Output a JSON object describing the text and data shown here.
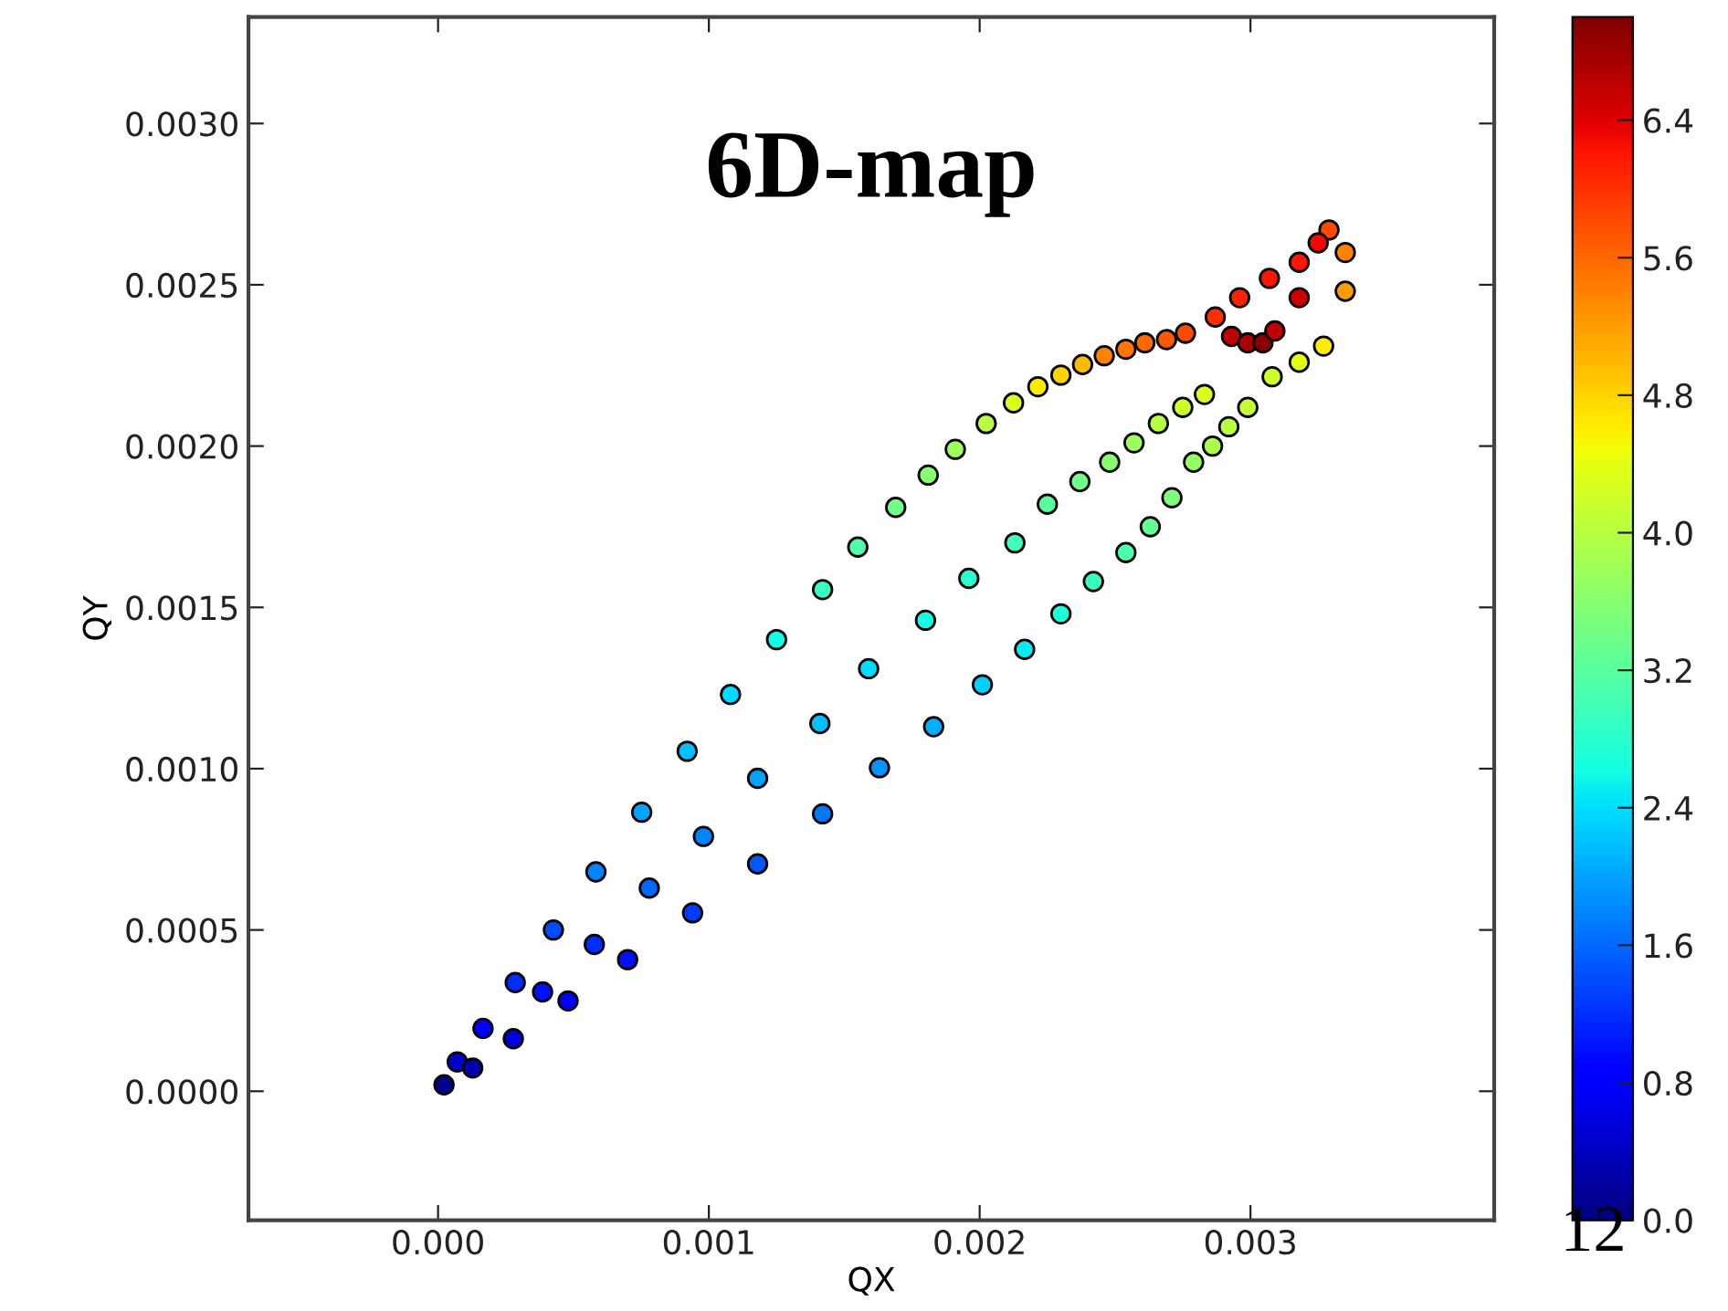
{
  "chart_data": {
    "type": "scatter",
    "title": "6D-map",
    "xlabel": "QX",
    "ylabel": "QY",
    "annotations": [
      "12"
    ],
    "marker": "circle",
    "grid": false,
    "legend": false,
    "xlim": [
      -0.0007,
      0.0039
    ],
    "ylim": [
      -0.0004,
      0.00333
    ],
    "xticks": [
      {
        "value": 0,
        "label": "0.000"
      },
      {
        "value": 0.001,
        "label": "0.001"
      },
      {
        "value": 0.002,
        "label": "0.002"
      },
      {
        "value": 0.003,
        "label": "0.003"
      }
    ],
    "yticks": [
      {
        "value": 0,
        "label": "0.0000"
      },
      {
        "value": 0.0005,
        "label": "0.0005"
      },
      {
        "value": 0.001,
        "label": "0.0010"
      },
      {
        "value": 0.0015,
        "label": "0.0015"
      },
      {
        "value": 0.002,
        "label": "0.0020"
      },
      {
        "value": 0.0025,
        "label": "0.0025"
      },
      {
        "value": 0.003,
        "label": "0.0030"
      }
    ],
    "clim": [
      0,
      7.0
    ],
    "cticks": [
      {
        "value": 0,
        "label": "0.0"
      },
      {
        "value": 0.8,
        "label": "0.8"
      },
      {
        "value": 1.6,
        "label": "1.6"
      },
      {
        "value": 2.4,
        "label": "2.4"
      },
      {
        "value": 3.2,
        "label": "3.2"
      },
      {
        "value": 4.0,
        "label": "4.0"
      },
      {
        "value": 4.8,
        "label": "4.8"
      },
      {
        "value": 5.6,
        "label": "5.6"
      },
      {
        "value": 6.4,
        "label": "6.4"
      }
    ],
    "series": [
      {
        "x": [
          2.2e-05,
          7.1e-05,
          0.000128,
          0.000166,
          0.000278,
          0.000285,
          0.000386,
          0.00048,
          0.000426,
          0.000577,
          0.0007,
          0.000583,
          0.00078,
          0.00094,
          0.000752,
          0.00098,
          0.00118,
          0.00092,
          0.00118,
          0.00142,
          0.00108,
          0.00141,
          0.00163,
          0.00125,
          0.00159,
          0.00183,
          0.00142,
          0.0018,
          0.00201,
          0.00155,
          0.00196,
          0.002166,
          0.00169,
          0.00213,
          0.0023,
          0.00181,
          0.00225,
          0.00242,
          0.00191,
          0.00237,
          0.00254,
          0.002024,
          0.00248,
          0.00263,
          0.002125,
          0.00257,
          0.00271,
          0.002215,
          0.00266,
          0.00279,
          0.0023,
          0.00275,
          0.00286,
          0.00238,
          0.00283,
          0.00292,
          0.00246,
          0.00254,
          0.00261,
          0.00269,
          0.00276,
          0.00287,
          0.00296,
          0.00307,
          0.00318,
          0.00329,
          0.00335,
          0.00335,
          0.00327,
          0.00318,
          0.00308,
          0.00299,
          0.00293,
          0.00299,
          0.003046,
          0.00309,
          0.00318,
          0.00325
        ],
        "values": [
          2e-05,
          9.1e-05,
          7.2e-05,
          0.000195,
          0.000163,
          0.000337,
          0.000308,
          0.00028,
          0.0005,
          0.000455,
          0.000408,
          0.00068,
          0.00063,
          0.000553,
          0.000865,
          0.00079,
          0.000705,
          0.001054,
          0.00097,
          0.00086,
          0.00123,
          0.00114,
          0.001003,
          0.0014,
          0.00131,
          0.00113,
          0.001555,
          0.00146,
          0.00126,
          0.001687,
          0.00159,
          0.00137,
          0.00181,
          0.0017,
          0.00148,
          0.00191,
          0.00182,
          0.00158,
          0.00199,
          0.00189,
          0.00167,
          0.00207,
          0.00195,
          0.00175,
          0.002134,
          0.00201,
          0.00184,
          0.002184,
          0.00207,
          0.00195,
          0.00222,
          0.00212,
          0.002,
          0.002253,
          0.00216,
          0.00206,
          0.00228,
          0.0023,
          0.00232,
          0.00233,
          0.00235,
          0.0024,
          0.00246,
          0.00252,
          0.00257,
          0.00267,
          0.0026,
          0.00248,
          0.00231,
          0.00226,
          0.002215,
          0.00212,
          0.00234,
          0.00232,
          0.00232,
          0.002357,
          0.00246,
          0.00263
        ],
        "cvalues": [
          0.1,
          0.5,
          0.3,
          0.9,
          0.6,
          1.2,
          1.0,
          0.8,
          1.4,
          1.2,
          1.0,
          1.8,
          1.6,
          1.3,
          2.0,
          1.8,
          1.5,
          2.2,
          2.0,
          1.7,
          2.4,
          2.2,
          1.9,
          2.6,
          2.4,
          2.1,
          2.9,
          2.6,
          2.3,
          3.1,
          2.8,
          2.5,
          3.4,
          3.0,
          2.7,
          3.6,
          3.2,
          2.9,
          3.8,
          3.4,
          3.1,
          4.0,
          3.6,
          3.3,
          4.3,
          3.8,
          3.5,
          4.6,
          4.0,
          3.7,
          4.8,
          4.2,
          3.9,
          5.0,
          4.3,
          4.0,
          5.4,
          5.5,
          5.6,
          5.7,
          5.8,
          6.0,
          6.1,
          6.2,
          6.2,
          5.8,
          5.4,
          5.2,
          4.6,
          4.4,
          4.2,
          4.1,
          6.6,
          6.7,
          6.9,
          6.6,
          6.5,
          6.3
        ]
      }
    ]
  }
}
